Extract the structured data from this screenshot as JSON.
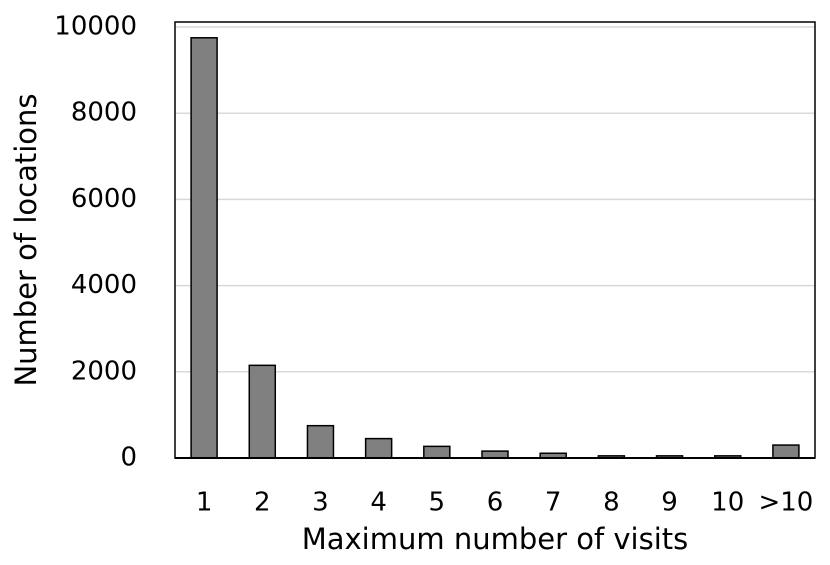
{
  "chart_data": {
    "type": "bar",
    "x_label": "Maximum number of visits",
    "y_label": "Number of locations",
    "categories": [
      "1",
      "2",
      "3",
      "4",
      "5",
      "6",
      "7",
      "8",
      "9",
      "10",
      ">10"
    ],
    "values": [
      9750,
      2150,
      750,
      450,
      270,
      160,
      110,
      50,
      50,
      50,
      300
    ],
    "color": "#808080",
    "ylim": [
      0,
      10000
    ],
    "yticks": [
      0,
      2000,
      4000,
      6000,
      8000,
      10000
    ],
    "grid": true
  }
}
